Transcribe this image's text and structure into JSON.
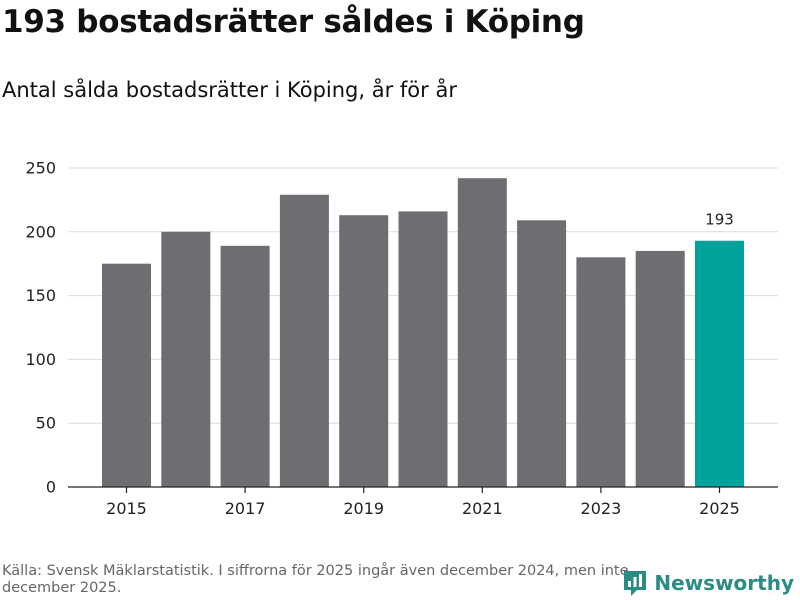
{
  "title": "193 bostadsrätter såldes i Köping",
  "subtitle": "Antal sålda bostadsrätter i Köping, år för år",
  "source": "Källa: Svensk Mäklarstatistik. I siffrorna för 2025 ingår även december 2024, men inte december 2025.",
  "brand": {
    "name": "Newsworthy",
    "color": "#2a8c84",
    "icon": "newsworthy-logo-icon"
  },
  "chart_data": {
    "type": "bar",
    "title": "Antal sålda bostadsrätter i Köping, år för år",
    "xlabel": "",
    "ylabel": "",
    "categories": [
      "2015",
      "2016",
      "2017",
      "2018",
      "2019",
      "2020",
      "2021",
      "2022",
      "2023",
      "2024",
      "2025"
    ],
    "values": [
      175,
      200,
      189,
      229,
      213,
      216,
      242,
      209,
      180,
      185,
      193
    ],
    "x_tick_labels": [
      "2015",
      "2017",
      "2019",
      "2021",
      "2023",
      "2025"
    ],
    "y_ticks": [
      0,
      50,
      100,
      150,
      200,
      250
    ],
    "ylim": [
      0,
      260
    ],
    "grid": true,
    "bar_color": "#6d6d72",
    "highlight_color": "#00a39b",
    "highlight_category": "2025",
    "annotations": [
      {
        "category": "2025",
        "text": "193"
      }
    ]
  }
}
